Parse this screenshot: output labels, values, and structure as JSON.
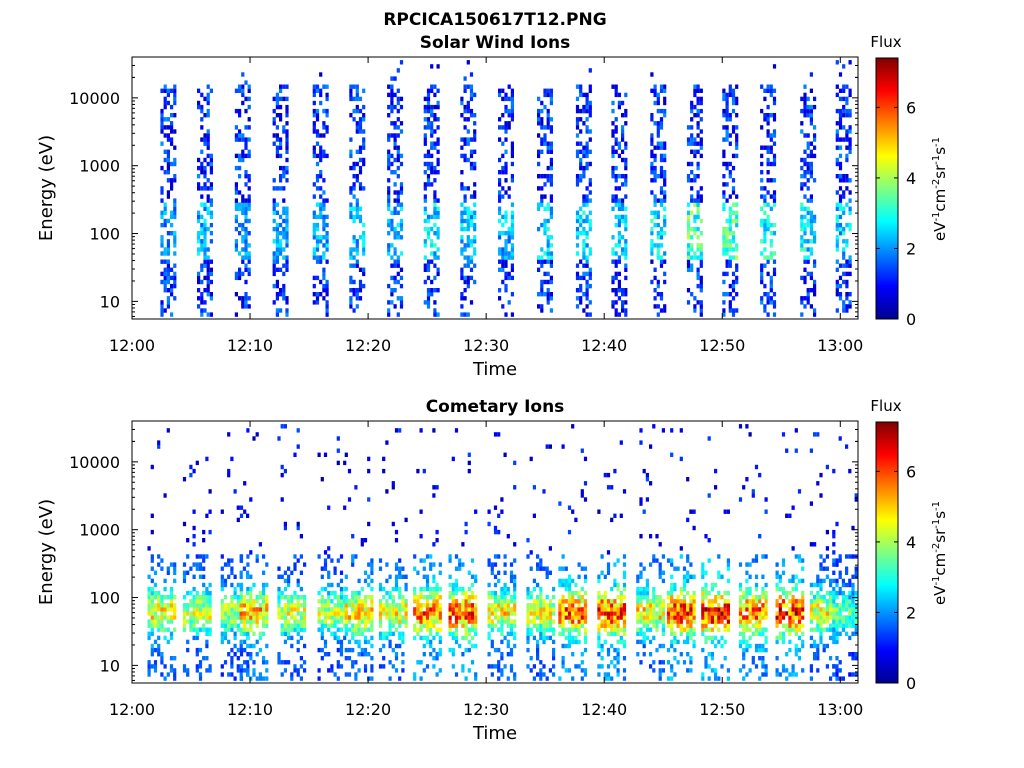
{
  "title": "RPCICA150617T12.PNG",
  "colormap": [
    "#00008f",
    "#0000ff",
    "#0080ff",
    "#00ffff",
    "#80ff80",
    "#ffff00",
    "#ff8000",
    "#ff0000",
    "#800000"
  ],
  "chart_data": [
    {
      "type": "heatmap",
      "title": "Solar Wind Ions",
      "xlabel": "Time",
      "ylabel": "Energy (eV)",
      "yscale": "log",
      "ylim": [
        5.5,
        40000
      ],
      "xlim_minutes": [
        0,
        61.5
      ],
      "x_ticks": [
        "12:00",
        "12:10",
        "12:20",
        "12:30",
        "12:40",
        "12:50",
        "13:00"
      ],
      "y_ticks": [
        "10",
        "100",
        "1000",
        "10000"
      ],
      "colorbar": {
        "title": "Flux",
        "label": "eV-1cm-2sr-1s-1",
        "range": [
          0,
          7.4
        ],
        "ticks": [
          "0",
          "2",
          "4",
          "6"
        ]
      },
      "bursts": [
        {
          "t": 3.0,
          "flux": 2.0
        },
        {
          "t": 6.1,
          "flux": 2.2
        },
        {
          "t": 9.3,
          "flux": 2.0
        },
        {
          "t": 12.5,
          "flux": 2.1
        },
        {
          "t": 15.9,
          "flux": 2.1
        },
        {
          "t": 19.0,
          "flux": 2.3
        },
        {
          "t": 22.2,
          "flux": 2.2
        },
        {
          "t": 25.3,
          "flux": 2.5
        },
        {
          "t": 28.4,
          "flux": 2.4
        },
        {
          "t": 31.6,
          "flux": 2.2
        },
        {
          "t": 34.9,
          "flux": 2.4
        },
        {
          "t": 38.2,
          "flux": 2.5
        },
        {
          "t": 41.2,
          "flux": 2.4
        },
        {
          "t": 44.5,
          "flux": 2.6
        },
        {
          "t": 47.6,
          "flux": 3.3
        },
        {
          "t": 50.6,
          "flux": 3.2
        },
        {
          "t": 53.8,
          "flux": 2.8
        },
        {
          "t": 57.2,
          "flux": 2.6
        },
        {
          "t": 60.2,
          "flux": 2.4
        }
      ]
    },
    {
      "type": "heatmap",
      "title": "Cometary Ions",
      "xlabel": "Time",
      "ylabel": "Energy (eV)",
      "yscale": "log",
      "ylim": [
        5.5,
        40000
      ],
      "xlim_minutes": [
        0,
        61.5
      ],
      "x_ticks": [
        "12:00",
        "12:10",
        "12:20",
        "12:30",
        "12:40",
        "12:50",
        "13:00"
      ],
      "y_ticks": [
        "10",
        "100",
        "1000",
        "10000"
      ],
      "colorbar": {
        "title": "Flux",
        "label": "eV-1cm-2sr-1s-1",
        "range": [
          0,
          7.4
        ],
        "ticks": [
          "0",
          "2",
          "4",
          "6"
        ]
      },
      "bursts": [
        {
          "t": 2.5,
          "flux": 5.0
        },
        {
          "t": 5.5,
          "flux": 4.6
        },
        {
          "t": 8.7,
          "flux": 4.3
        },
        {
          "t": 10.3,
          "flux": 5.4
        },
        {
          "t": 13.5,
          "flux": 4.6
        },
        {
          "t": 16.9,
          "flux": 4.4
        },
        {
          "t": 19.2,
          "flux": 5.2
        },
        {
          "t": 22.1,
          "flux": 5.0
        },
        {
          "t": 25.0,
          "flux": 6.0
        },
        {
          "t": 28.0,
          "flux": 6.2
        },
        {
          "t": 31.3,
          "flux": 5.0
        },
        {
          "t": 34.6,
          "flux": 4.8
        },
        {
          "t": 37.3,
          "flux": 6.1
        },
        {
          "t": 40.6,
          "flux": 6.3
        },
        {
          "t": 43.9,
          "flux": 5.0
        },
        {
          "t": 46.5,
          "flux": 6.4
        },
        {
          "t": 49.4,
          "flux": 6.8
        },
        {
          "t": 52.6,
          "flux": 6.0
        },
        {
          "t": 55.7,
          "flux": 6.5
        },
        {
          "t": 58.6,
          "flux": 4.8
        },
        {
          "t": 60.5,
          "flux": 3.8
        }
      ]
    }
  ]
}
